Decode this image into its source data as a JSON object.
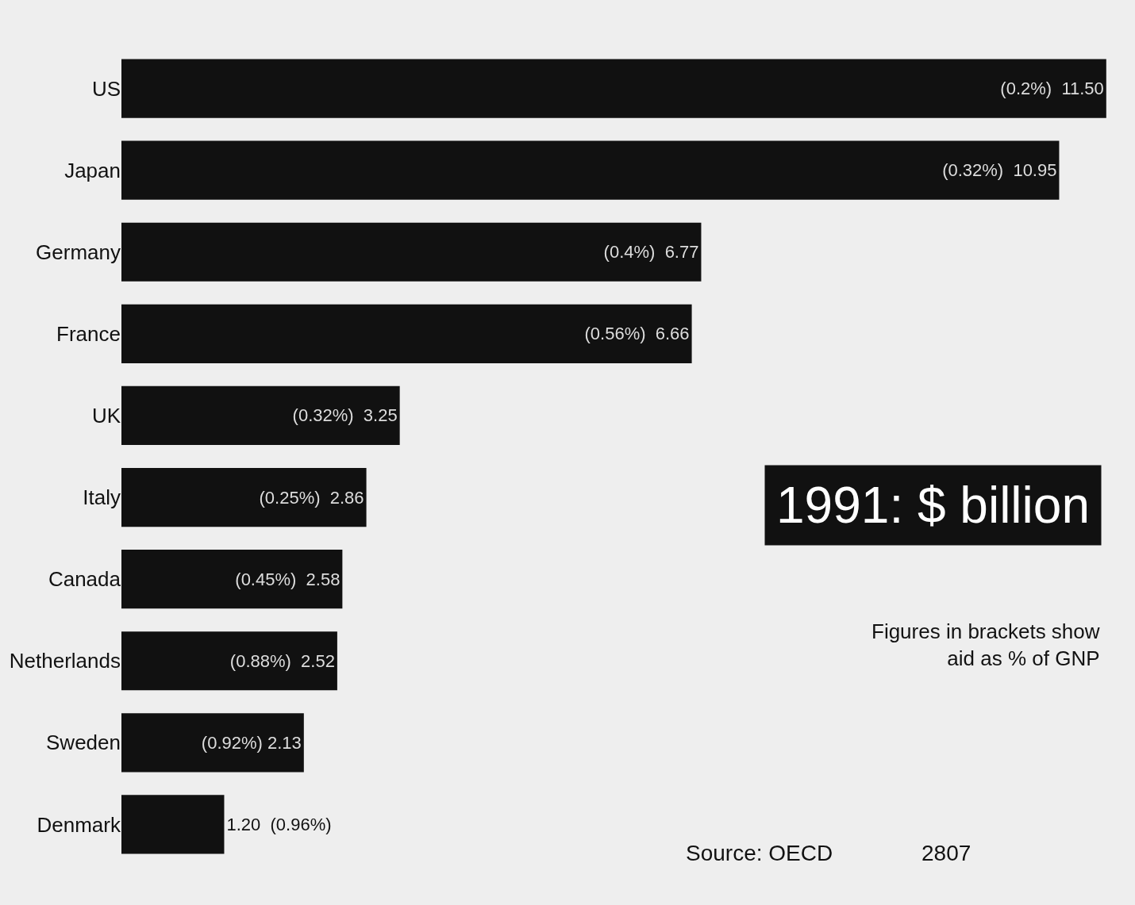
{
  "chart_data": {
    "type": "bar",
    "orientation": "horizontal",
    "title": "1991: $ billion",
    "categories": [
      "US",
      "Japan",
      "Germany",
      "France",
      "UK",
      "Italy",
      "Canada",
      "Netherlands",
      "Sweden",
      "Denmark"
    ],
    "values": [
      11.5,
      10.95,
      6.77,
      6.66,
      3.25,
      2.86,
      2.58,
      2.52,
      2.13,
      1.2
    ],
    "value_labels": [
      "(0.2%)  11.50",
      "(0.32%)  10.95",
      "(0.4%)  6.77",
      "(0.56%)  6.66",
      "(0.32%)  3.25",
      "(0.25%)  2.86",
      "(0.45%)  2.58",
      "(0.88%)  2.52",
      "(0.92%) 2.13",
      "1.20  (0.96%)"
    ],
    "color": "#111111",
    "annotations": [
      "Figures in brackets show\naid as % of GNP",
      "Source: OECD",
      "2807"
    ],
    "grid": false,
    "legend": false
  }
}
